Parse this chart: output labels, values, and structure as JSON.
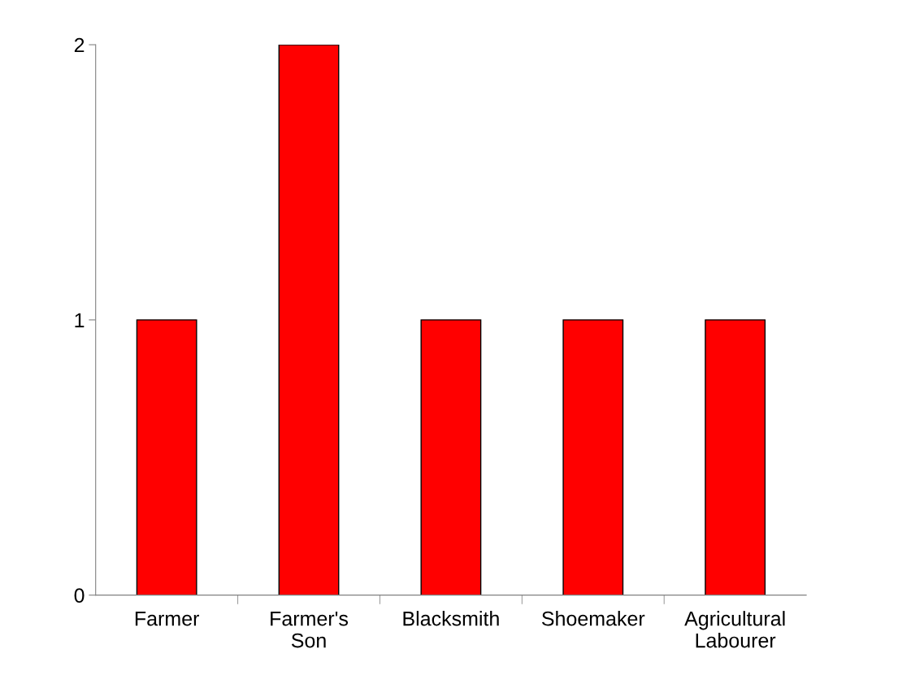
{
  "chart_data": {
    "type": "bar",
    "categories": [
      "Farmer",
      "Farmer's\nSon",
      "Blacksmith",
      "Shoemaker",
      "Agricultural\nLabourer"
    ],
    "values": [
      1,
      2,
      1,
      1,
      1
    ],
    "color": "#ff0000",
    "ylim": [
      0,
      2
    ],
    "yticks": [
      0,
      1,
      2
    ],
    "grid": false
  }
}
